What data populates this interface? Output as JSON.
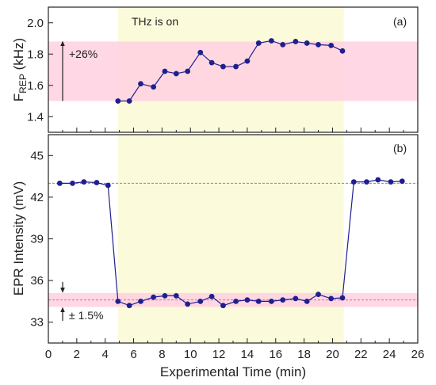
{
  "chart_data": [
    {
      "type": "line",
      "panel_label": "(a)",
      "ylabel_main": "F",
      "ylabel_sub": "REP",
      "ylabel_unit": " (kHz)",
      "xlim": [
        0,
        26
      ],
      "ylim": [
        1.3,
        2.1
      ],
      "yticks": [
        1.4,
        1.6,
        1.8,
        2.0
      ],
      "ytick_labels": [
        "1.4",
        "1.6",
        "1.8",
        "2.0"
      ],
      "annotation_text": "THz is on",
      "band": [
        1.5,
        1.88
      ],
      "band_color": "#ffd0e0",
      "arrow_text": "+26%",
      "series": [
        {
          "color": "#1f1f8f",
          "x": [
            4.9,
            5.7,
            6.5,
            7.4,
            8.2,
            9.0,
            9.8,
            10.7,
            11.5,
            12.3,
            13.2,
            14.0,
            14.8,
            15.7,
            16.5,
            17.4,
            18.2,
            19.0,
            19.9,
            20.7
          ],
          "y": [
            1.5,
            1.5,
            1.61,
            1.59,
            1.69,
            1.675,
            1.69,
            1.81,
            1.745,
            1.72,
            1.72,
            1.755,
            1.87,
            1.885,
            1.86,
            1.88,
            1.87,
            1.86,
            1.855,
            1.82
          ]
        }
      ]
    },
    {
      "type": "line",
      "panel_label": "(b)",
      "ylabel": "EPR Intensity (mV)",
      "xlabel": "Experimental Time (min)",
      "xlim": [
        0,
        26
      ],
      "ylim": [
        31.5,
        46.5
      ],
      "xticks": [
        0,
        2,
        4,
        6,
        8,
        10,
        12,
        14,
        16,
        18,
        20,
        22,
        24,
        26
      ],
      "xtick_labels": [
        "0",
        "2",
        "4",
        "6",
        "8",
        "10",
        "12",
        "14",
        "16",
        "18",
        "20",
        "22",
        "24",
        "26"
      ],
      "yticks": [
        33,
        36,
        39,
        42,
        45
      ],
      "ytick_labels": [
        "33",
        "36",
        "39",
        "42",
        "45"
      ],
      "ref_lines": [
        43.0,
        34.6
      ],
      "band": [
        34.1,
        35.1
      ],
      "band_color": "#ffd0e0",
      "arrow_text": "± 1.5%",
      "series": [
        {
          "color": "#1f1f8f",
          "x": [
            0.8,
            1.7,
            2.5,
            3.4,
            4.2,
            4.9,
            5.7,
            6.5,
            7.4,
            8.2,
            9.0,
            9.8,
            10.7,
            11.5,
            12.3,
            13.2,
            14.0,
            14.8,
            15.7,
            16.5,
            17.4,
            18.2,
            19.0,
            19.9,
            20.7,
            21.5,
            22.4,
            23.2,
            24.1,
            24.9
          ],
          "y": [
            43.0,
            43.0,
            43.1,
            43.05,
            42.85,
            34.5,
            34.2,
            34.5,
            34.8,
            34.9,
            34.9,
            34.3,
            34.5,
            34.85,
            34.2,
            34.5,
            34.6,
            34.5,
            34.5,
            34.6,
            34.7,
            34.5,
            35.0,
            34.7,
            34.75,
            43.1,
            43.1,
            43.25,
            43.1,
            43.15
          ]
        }
      ]
    }
  ],
  "shared": {
    "thz_span": [
      4.9,
      20.8
    ],
    "thz_color": "#fbfbdc"
  }
}
